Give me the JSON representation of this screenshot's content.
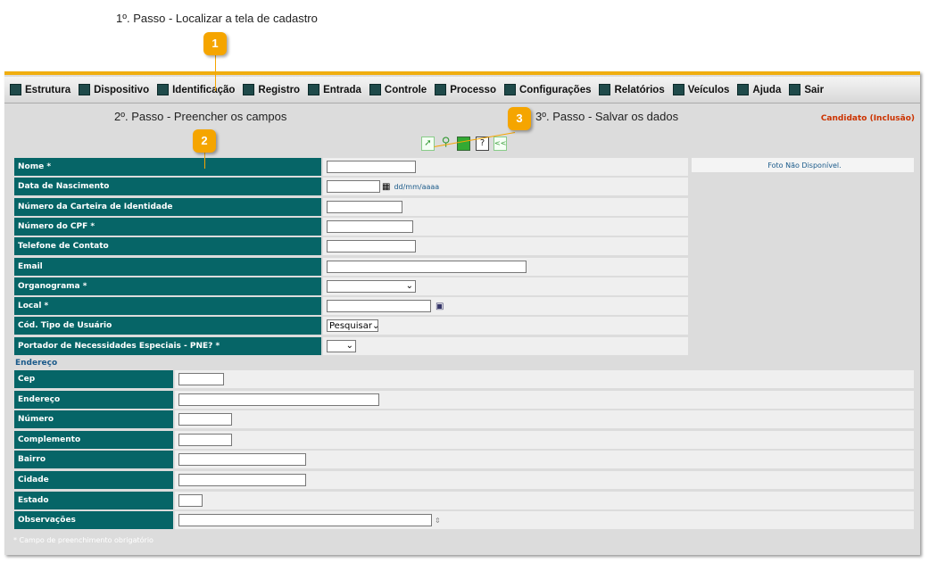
{
  "steps": {
    "s1": "1º. Passo - Localizar a tela de cadastro",
    "s2": "2º. Passo - Preencher os campos",
    "s3": "3º. Passo - Salvar os dados",
    "b1": "1",
    "b2": "2",
    "b3": "3"
  },
  "menu": [
    {
      "label": "Estrutura",
      "icon": "structure-icon"
    },
    {
      "label": "Dispositivo",
      "icon": "device-icon"
    },
    {
      "label": "Identificação",
      "icon": "identification-icon"
    },
    {
      "label": "Registro",
      "icon": "registry-icon"
    },
    {
      "label": "Entrada",
      "icon": "entry-icon"
    },
    {
      "label": "Controle",
      "icon": "control-icon"
    },
    {
      "label": "Processo",
      "icon": "process-icon"
    },
    {
      "label": "Configurações",
      "icon": "settings-icon"
    },
    {
      "label": "Relatórios",
      "icon": "reports-icon"
    },
    {
      "label": "Veículos",
      "icon": "vehicles-icon"
    },
    {
      "label": "Ajuda",
      "icon": "help-icon"
    },
    {
      "label": "Sair",
      "icon": "exit-icon"
    }
  ],
  "page_status": "Candidato (Inclusão)",
  "toolbar": {
    "help": "?",
    "back": "<<"
  },
  "photo": "Foto Não Disponível.",
  "form": {
    "nome": "Nome *",
    "nasc": "Data de Nascimento",
    "date_hint": "dd/mm/aaaa",
    "rg": "Número da Carteira de Identidade",
    "cpf": "Número do CPF *",
    "tel": "Telefone de Contato",
    "email": "Email",
    "org": "Organograma *",
    "local": "Local *",
    "tipo": "Cód. Tipo de Usuário",
    "tipo_value": "Pesquisar",
    "pne": "Portador de Necessidades Especiais - PNE? *"
  },
  "endereco": {
    "title": "Endereço",
    "cep": "Cep",
    "end": "Endereço",
    "num": "Número",
    "comp": "Complemento",
    "bairro": "Bairro",
    "cidade": "Cidade",
    "estado": "Estado",
    "obs": "Observações"
  },
  "footnote": "* Campo de preenchimento obrigatório",
  "colors": {
    "accent": "#f0ae10",
    "label_bg": "#066567",
    "status": "#cc3300"
  }
}
